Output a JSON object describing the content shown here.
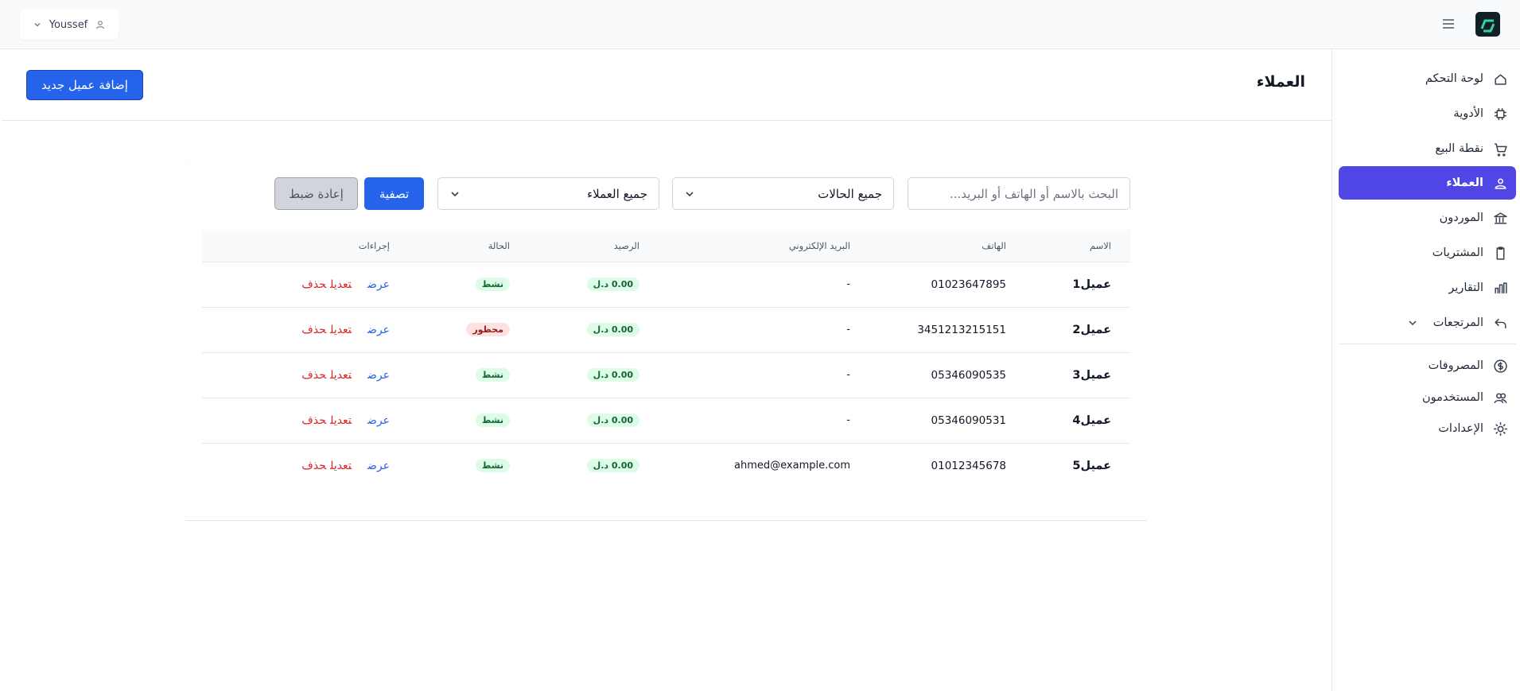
{
  "header": {
    "user": "Youssef"
  },
  "sidebar": {
    "items": [
      {
        "label": "لوحة التحكم",
        "icon": "home"
      },
      {
        "label": "الأدوية",
        "icon": "chip"
      },
      {
        "label": "نقطة البيع",
        "icon": "cart"
      },
      {
        "label": "العملاء",
        "icon": "users",
        "active": true
      },
      {
        "label": "الموردون",
        "icon": "bank"
      },
      {
        "label": "المشتريات",
        "icon": "clip"
      },
      {
        "label": "التقارير",
        "icon": "chart"
      },
      {
        "label": "المرتجعات",
        "icon": "back",
        "expandable": true
      },
      {
        "label": "المصروفات",
        "icon": "coin"
      },
      {
        "label": "المستخدمون",
        "icon": "people"
      },
      {
        "label": "الإعدادات",
        "icon": "gear"
      }
    ]
  },
  "page": {
    "title": "العملاء",
    "add_button": "إضافة عميل جديد"
  },
  "filters": {
    "search_placeholder": "البحث بالاسم أو الهاتف أو البريد...",
    "status_select": "جميع الحالات",
    "customer_select": "جميع العملاء",
    "filter_button": "تصفية",
    "reset_button": "إعادة ضبط"
  },
  "table": {
    "headers": [
      "الاسم",
      "الهاتف",
      "البريد الإلكتروني",
      "الرصيد",
      "الحالة",
      "إجراءات"
    ],
    "actions": {
      "view": "عرض",
      "edit": "تعديل",
      "delete": "حذف"
    },
    "rows": [
      {
        "name": "عميل1",
        "phone": "01023647895",
        "email": "-",
        "balance": "0.00 د.ل",
        "status": "نشط",
        "status_bg": "#dcfce7",
        "status_fg": "#166534"
      },
      {
        "name": "عميل2",
        "phone": "3451213215151",
        "email": "-",
        "balance": "0.00 د.ل",
        "status": "محظور",
        "status_bg": "#fee2e2",
        "status_fg": "#991b1b"
      },
      {
        "name": "عميل3",
        "phone": "05346090535",
        "email": "-",
        "balance": "0.00 د.ل",
        "status": "نشط",
        "status_bg": "#dcfce7",
        "status_fg": "#166534"
      },
      {
        "name": "عميل4",
        "phone": "05346090531",
        "email": "-",
        "balance": "0.00 د.ل",
        "status": "نشط",
        "status_bg": "#dcfce7",
        "status_fg": "#166534"
      },
      {
        "name": "عميل5",
        "phone": "01012345678",
        "email": "ahmed@example.com",
        "balance": "0.00 د.ل",
        "status": "نشط",
        "status_bg": "#dcfce7",
        "status_fg": "#166534"
      }
    ]
  }
}
